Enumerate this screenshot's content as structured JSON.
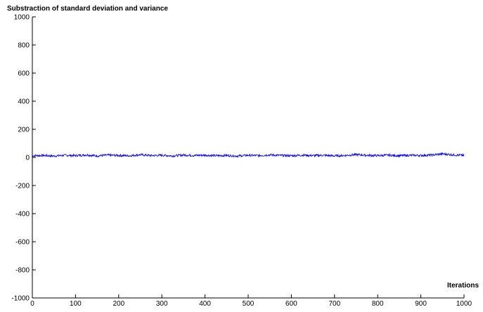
{
  "chart_data": {
    "type": "line",
    "title": "Substraction of standard deviation and variance",
    "xlabel": "Iterations",
    "ylabel": "",
    "xlim": [
      0,
      1000
    ],
    "ylim": [
      -1000,
      1000
    ],
    "xticks": [
      0,
      100,
      200,
      300,
      400,
      500,
      600,
      700,
      800,
      900,
      1000
    ],
    "yticks": [
      -1000,
      -800,
      -600,
      -400,
      -200,
      0,
      200,
      400,
      600,
      800,
      1000
    ],
    "grid": false,
    "series": [
      {
        "color": "#0000ff",
        "x": [
          0,
          25,
          50,
          75,
          100,
          125,
          150,
          175,
          200,
          225,
          250,
          275,
          300,
          325,
          350,
          375,
          400,
          425,
          450,
          475,
          500,
          525,
          550,
          575,
          600,
          625,
          650,
          675,
          700,
          725,
          750,
          775,
          800,
          825,
          850,
          875,
          900,
          925,
          950,
          975,
          1000
        ],
        "values": [
          12,
          14,
          10,
          15,
          13,
          18,
          11,
          16,
          14,
          12,
          19,
          13,
          15,
          11,
          17,
          14,
          16,
          12,
          14,
          10,
          15,
          13,
          18,
          14,
          12,
          16,
          13,
          15,
          11,
          14,
          20,
          15,
          13,
          16,
          12,
          15,
          14,
          17,
          25,
          18,
          14
        ],
        "noise_amplitude": 8
      }
    ]
  }
}
